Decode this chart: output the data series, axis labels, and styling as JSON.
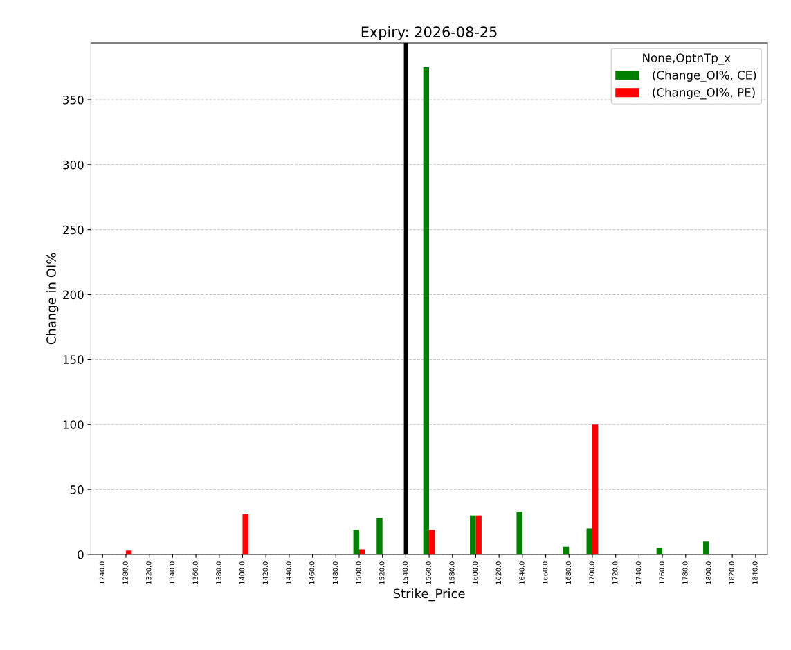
{
  "chart_data": {
    "type": "bar",
    "title": "Expiry: 2026-08-25",
    "xlabel": "Strike_Price",
    "ylabel": "Change in OI%",
    "categories": [
      "1240.0",
      "1280.0",
      "1320.0",
      "1340.0",
      "1360.0",
      "1380.0",
      "1400.0",
      "1420.0",
      "1440.0",
      "1460.0",
      "1480.0",
      "1500.0",
      "1520.0",
      "1540.0",
      "1560.0",
      "1580.0",
      "1600.0",
      "1620.0",
      "1640.0",
      "1660.0",
      "1680.0",
      "1700.0",
      "1720.0",
      "1740.0",
      "1760.0",
      "1780.0",
      "1800.0",
      "1820.0",
      "1840.0"
    ],
    "series": [
      {
        "name": " (Change_OI%, CE)",
        "color": "#008000",
        "values": [
          0,
          0,
          0,
          0,
          0,
          0,
          0,
          0,
          0,
          0,
          0,
          19,
          28,
          0,
          375,
          0,
          30,
          0,
          33,
          0,
          6,
          20,
          0,
          0,
          5,
          0,
          10,
          0,
          0
        ]
      },
      {
        "name": " (Change_OI%, PE)",
        "color": "#ff0000",
        "values": [
          0,
          3,
          0,
          0,
          0,
          0,
          31,
          0,
          0,
          0,
          0,
          4,
          0,
          0,
          19,
          0,
          30,
          0,
          0,
          0,
          0,
          100,
          0,
          0,
          0,
          0,
          0,
          0,
          0
        ]
      }
    ],
    "legend_title": "None,OptnTp_x",
    "legend": "top right",
    "ylim": [
      0,
      393.7
    ],
    "yticks": [
      0,
      50,
      100,
      150,
      200,
      250,
      300,
      350
    ],
    "grid": "y",
    "ref_lines": [
      {
        "axis": "x",
        "value": "1540.0",
        "color": "#000000",
        "line_style": "solid"
      }
    ]
  }
}
